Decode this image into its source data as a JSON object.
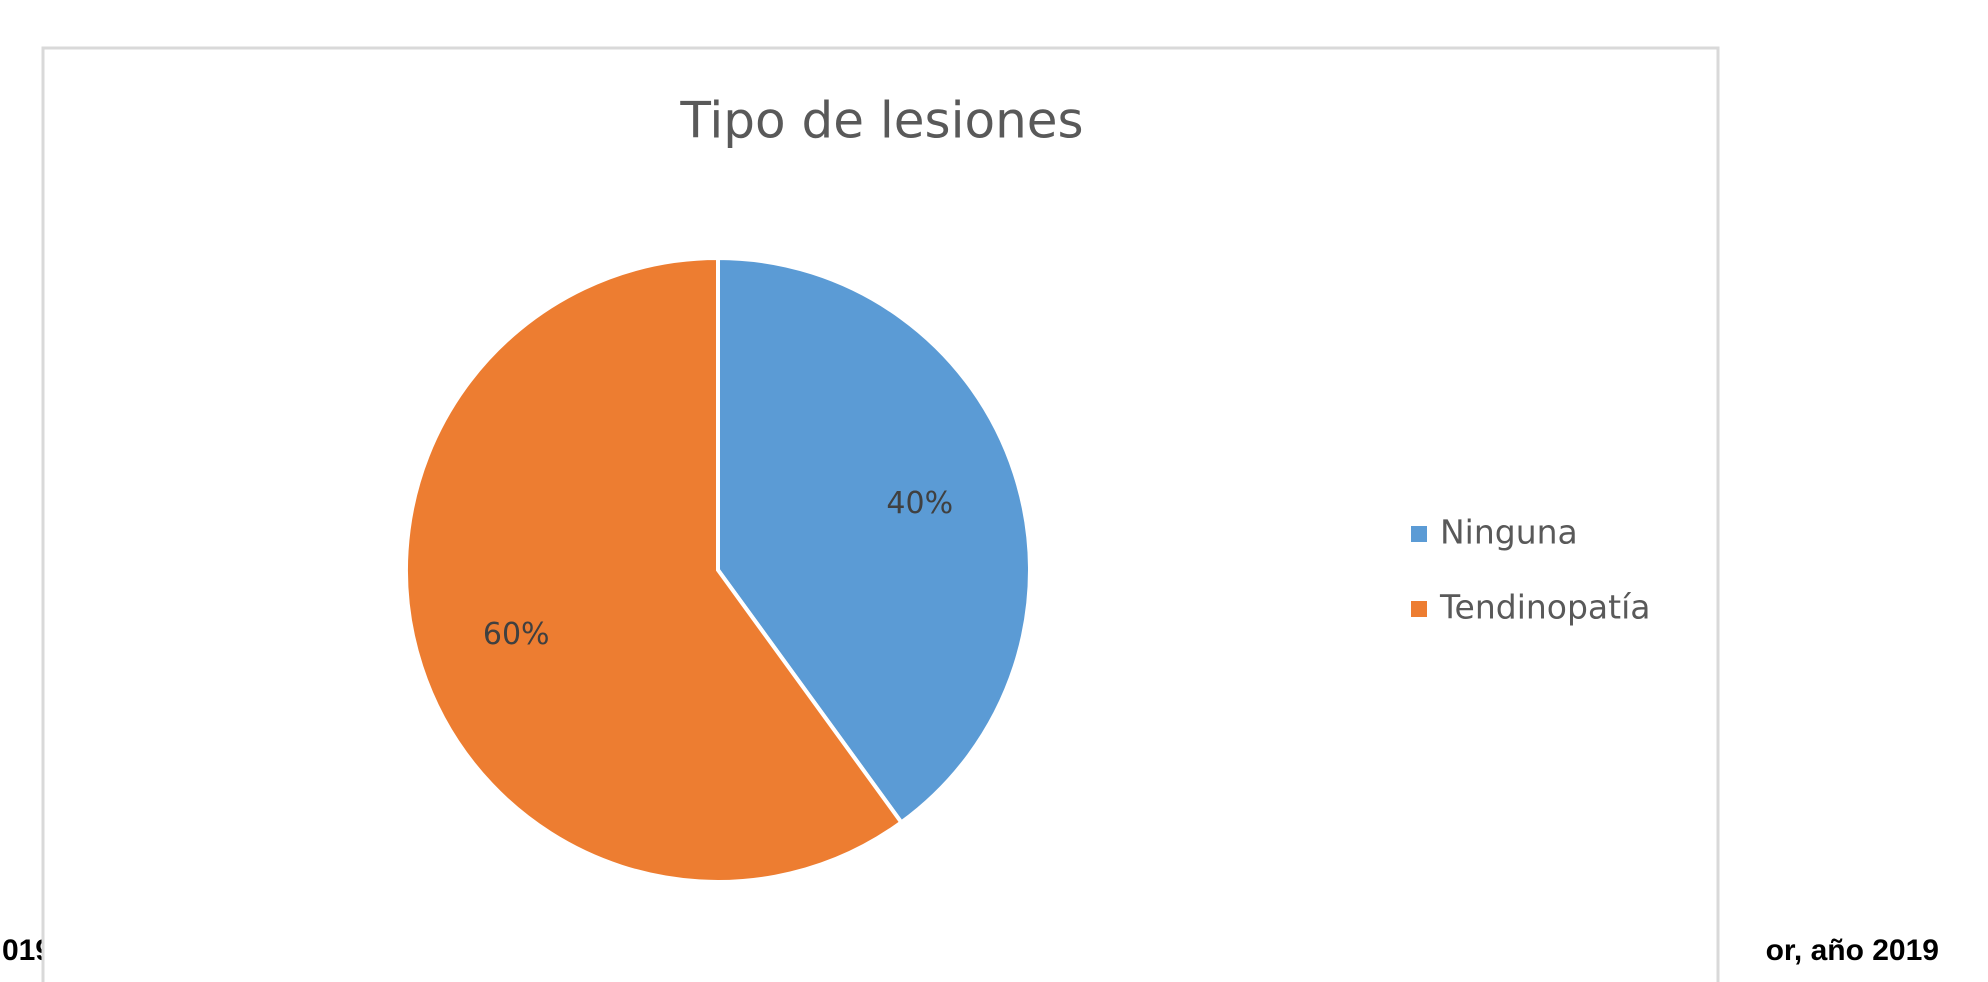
{
  "chart_data": {
    "type": "pie",
    "title": "Tipo de lesiones",
    "categories": [
      "Ninguna",
      "Tendinopatía"
    ],
    "values": [
      40,
      60
    ],
    "value_labels": [
      "40%",
      "60%"
    ],
    "colors": [
      "#5b9bd5",
      "#ed7d31"
    ],
    "legend": "right"
  },
  "background_text": [
    "019",
    "or, año 2019"
  ]
}
